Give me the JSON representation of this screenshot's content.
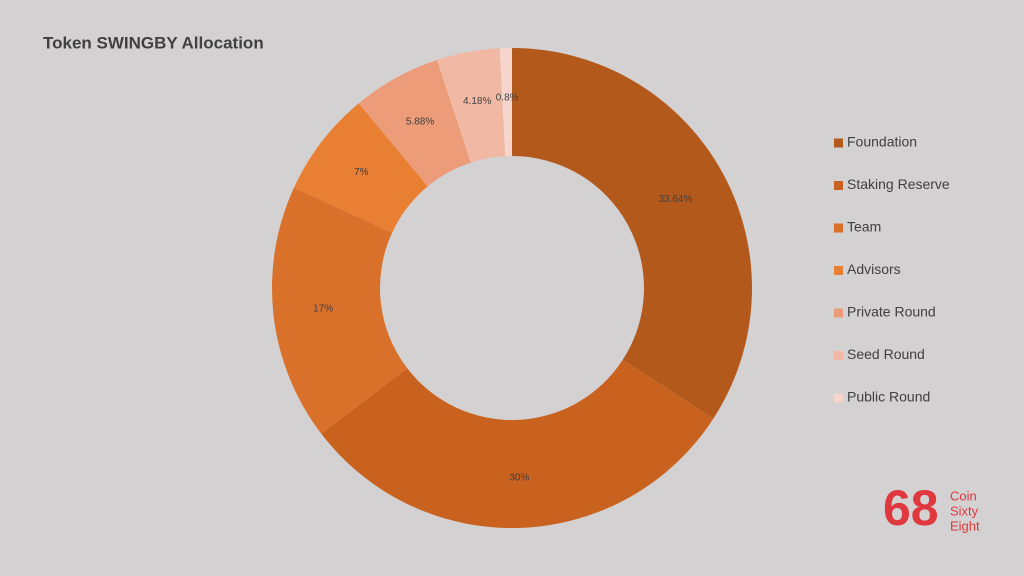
{
  "chart_data": {
    "type": "donut",
    "title": "Token SWINGBY Allocation",
    "categories": [
      "Foundation",
      "Staking Reserve",
      "Team",
      "Advisors",
      "Private Round",
      "Seed Round",
      "Public Round"
    ],
    "values": [
      33.64,
      30,
      17,
      7,
      5.88,
      4.18,
      0.8
    ],
    "value_labels": [
      "33.64%",
      "30%",
      "17%",
      "7%",
      "5.88%",
      "4.18%",
      "0.8%"
    ],
    "colors": [
      "#b3591c",
      "#c9621f",
      "#d9712b",
      "#e97f33",
      "#ec9c79",
      "#f1b9a4",
      "#f6d5cd"
    ],
    "legend": "right"
  },
  "logo": {
    "mark": "68",
    "lines": [
      "Coin",
      "Sixty",
      "Eight"
    ]
  }
}
